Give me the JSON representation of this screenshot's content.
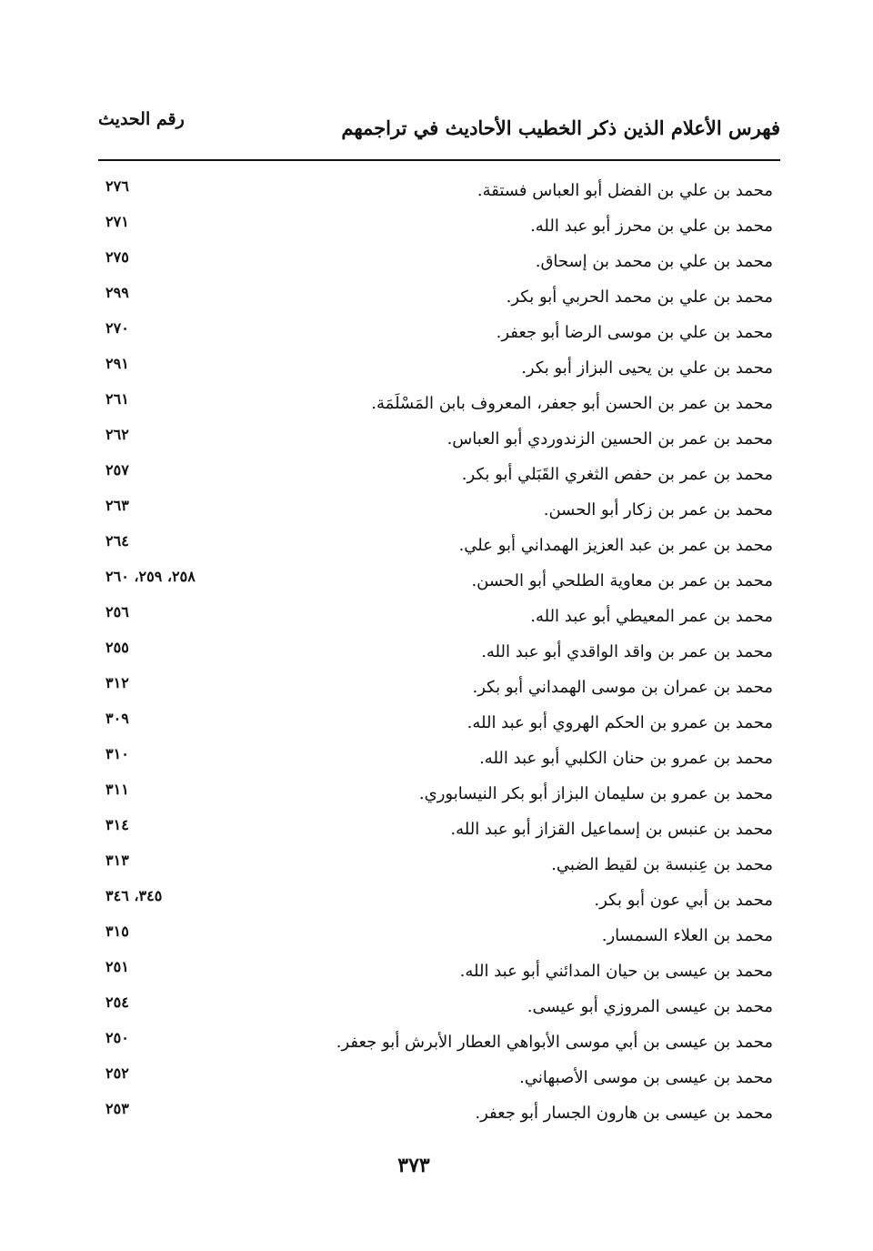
{
  "header": {
    "title": "فهرس الأعلام الذين ذكر الخطيب الأحاديث في تراجمهم",
    "column_label": "رقم الحديث"
  },
  "entries": [
    {
      "name": "محمد بن علي بن الفضل أبو العباس فستقة.",
      "refs": "٢٧٦"
    },
    {
      "name": "محمد بن علي بن محرز أبو عبد الله.",
      "refs": "٢٧١"
    },
    {
      "name": "محمد بن علي بن محمد بن إسحاق.",
      "refs": "٢٧٥"
    },
    {
      "name": "محمد بن علي بن محمد الحربي أبو بكر.",
      "refs": "٢٩٩"
    },
    {
      "name": "محمد بن علي بن موسى الرضا أبو جعفر.",
      "refs": "٢٧٠"
    },
    {
      "name": "محمد بن علي بن يحيى البزاز أبو بكر.",
      "refs": "٢٩١"
    },
    {
      "name": "محمد بن عمر بن الحسن أبو جعفر، المعروف بابن المَسْلَمَة.",
      "refs": "٢٦١"
    },
    {
      "name": "محمد بن عمر بن الحسين الزندوردي أبو العباس.",
      "refs": "٢٦٢"
    },
    {
      "name": "محمد بن عمر بن حفص الثغري القَبَلي أبو بكر.",
      "refs": "٢٥٧"
    },
    {
      "name": "محمد بن عمر بن زكار أبو الحسن.",
      "refs": "٢٦٣"
    },
    {
      "name": "محمد بن عمر بن عبد العزيز الهمداني أبو علي.",
      "refs": "٢٦٤"
    },
    {
      "name": "محمد بن عمر بن معاوية الطلحي أبو الحسن.",
      "refs": "٢٥٨، ٢٥٩، ٢٦٠"
    },
    {
      "name": "محمد بن عمر المعيطي أبو عبد الله.",
      "refs": "٢٥٦"
    },
    {
      "name": "محمد بن عمر بن واقد الواقدي أبو عبد الله.",
      "refs": "٢٥٥"
    },
    {
      "name": "محمد بن عمران بن موسى الهمداني أبو بكر.",
      "refs": "٣١٢"
    },
    {
      "name": "محمد بن عمرو بن الحكم الهروي أبو عبد الله.",
      "refs": "٣٠٩"
    },
    {
      "name": "محمد بن عمرو بن حنان الكلبي أبو عبد الله.",
      "refs": "٣١٠"
    },
    {
      "name": "محمد بن عمرو بن سليمان البزاز أبو بكر النيسابوري.",
      "refs": "٣١١"
    },
    {
      "name": "محمد بن عنبس بن إسماعيل القزاز أبو عبد الله.",
      "refs": "٣١٤"
    },
    {
      "name": "محمد بن عِنبسة بن لقيط الضبي.",
      "refs": "٣١٣"
    },
    {
      "name": "محمد بن أبي عون أبو بكر.",
      "refs": "٣٤٥، ٣٤٦"
    },
    {
      "name": "محمد بن العلاء السمسار.",
      "refs": "٣١٥"
    },
    {
      "name": "محمد بن عيسى بن حيان المدائني أبو عبد الله.",
      "refs": "٢٥١"
    },
    {
      "name": "محمد بن عيسى المروزي أبو عيسى.",
      "refs": "٢٥٤"
    },
    {
      "name": "محمد بن عيسى بن أبي موسى الأبواهي العطار الأبرش أبو جعفر.",
      "refs": "٢٥٠"
    },
    {
      "name": "محمد بن عيسى بن موسى الأصبهاني.",
      "refs": "٢٥٢"
    },
    {
      "name": "محمد بن عيسى بن هارون الجسار أبو جعفر.",
      "refs": "٢٥٣"
    }
  ],
  "footer": {
    "page_number": "٣٧٣"
  }
}
